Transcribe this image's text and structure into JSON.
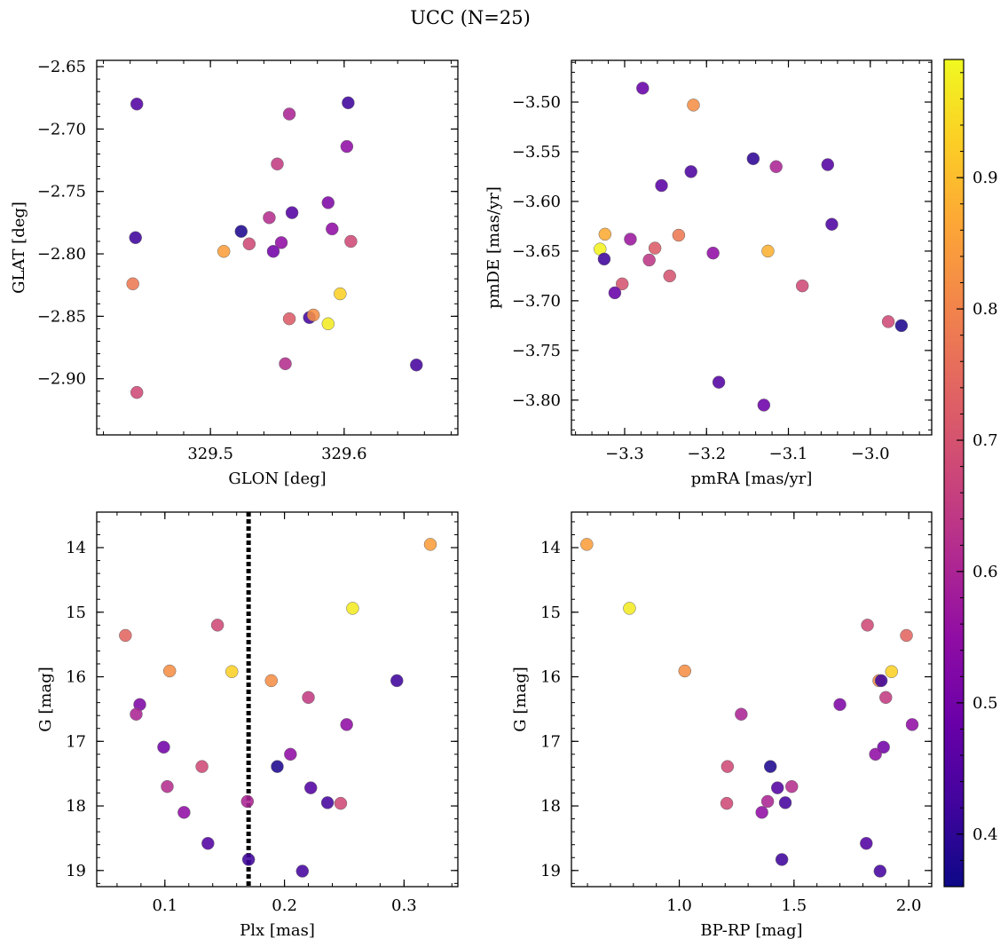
{
  "figure": {
    "title": "UCC (N=25)"
  },
  "colorbar": {
    "min": 0.36,
    "max": 0.99,
    "ticks": [
      "0.4",
      "0.5",
      "0.6",
      "0.7",
      "0.8",
      "0.9"
    ],
    "tick_values": [
      0.4,
      0.5,
      0.6,
      0.7,
      0.8,
      0.9
    ],
    "colormap": "plasma"
  },
  "chart_data": [
    {
      "type": "scatter",
      "id": "glon-glat",
      "xlabel": "GLON [deg]",
      "ylabel": "GLAT [deg]",
      "xlim": [
        329.415,
        329.685
      ],
      "ylim": [
        -2.945,
        -2.645
      ],
      "xticks": [
        329.5,
        329.6
      ],
      "xticklabels": [
        "329.5",
        "329.6"
      ],
      "yticks": [
        -2.65,
        -2.7,
        -2.75,
        -2.8,
        -2.85,
        -2.9
      ],
      "yticklabels": [
        "−2.65",
        "−2.70",
        "−2.75",
        "−2.80",
        "−2.85",
        "−2.90"
      ],
      "y_inverted": false,
      "points": [
        {
          "x": 329.445,
          "y": -2.68,
          "c": 0.45
        },
        {
          "x": 329.559,
          "y": -2.688,
          "c": 0.6
        },
        {
          "x": 329.603,
          "y": -2.679,
          "c": 0.42
        },
        {
          "x": 329.602,
          "y": -2.714,
          "c": 0.55
        },
        {
          "x": 329.55,
          "y": -2.728,
          "c": 0.65
        },
        {
          "x": 329.588,
          "y": -2.759,
          "c": 0.52
        },
        {
          "x": 329.561,
          "y": -2.767,
          "c": 0.45
        },
        {
          "x": 329.544,
          "y": -2.771,
          "c": 0.62
        },
        {
          "x": 329.523,
          "y": -2.782,
          "c": 0.38
        },
        {
          "x": 329.444,
          "y": -2.787,
          "c": 0.42
        },
        {
          "x": 329.591,
          "y": -2.78,
          "c": 0.55
        },
        {
          "x": 329.529,
          "y": -2.792,
          "c": 0.68
        },
        {
          "x": 329.553,
          "y": -2.791,
          "c": 0.55
        },
        {
          "x": 329.605,
          "y": -2.79,
          "c": 0.68
        },
        {
          "x": 329.51,
          "y": -2.798,
          "c": 0.85
        },
        {
          "x": 329.547,
          "y": -2.798,
          "c": 0.5
        },
        {
          "x": 329.442,
          "y": -2.824,
          "c": 0.78
        },
        {
          "x": 329.597,
          "y": -2.832,
          "c": 0.93
        },
        {
          "x": 329.559,
          "y": -2.852,
          "c": 0.72
        },
        {
          "x": 329.574,
          "y": -2.851,
          "c": 0.43
        },
        {
          "x": 329.577,
          "y": -2.849,
          "c": 0.82
        },
        {
          "x": 329.588,
          "y": -2.856,
          "c": 0.97
        },
        {
          "x": 329.556,
          "y": -2.888,
          "c": 0.62
        },
        {
          "x": 329.654,
          "y": -2.889,
          "c": 0.43
        },
        {
          "x": 329.445,
          "y": -2.911,
          "c": 0.68
        }
      ]
    },
    {
      "type": "scatter",
      "id": "pmra-pmde",
      "xlabel": "pmRA [mas/yr]",
      "ylabel": "pmDE [mas/yr]",
      "xlim": [
        -3.365,
        -2.925
      ],
      "ylim": [
        -3.835,
        -3.458
      ],
      "xticks": [
        -3.3,
        -3.2,
        -3.1,
        -3.0
      ],
      "xticklabels": [
        "−3.3",
        "−3.2",
        "−3.1",
        "−3.0"
      ],
      "yticks": [
        -3.5,
        -3.55,
        -3.6,
        -3.65,
        -3.7,
        -3.75,
        -3.8
      ],
      "yticklabels": [
        "−3.50",
        "−3.55",
        "−3.60",
        "−3.65",
        "−3.70",
        "−3.75",
        "−3.80"
      ],
      "y_inverted": false,
      "points": [
        {
          "x": -3.278,
          "y": -3.486,
          "c": 0.48
        },
        {
          "x": -3.216,
          "y": -3.503,
          "c": 0.82
        },
        {
          "x": -3.143,
          "y": -3.557,
          "c": 0.4
        },
        {
          "x": -3.052,
          "y": -3.563,
          "c": 0.45
        },
        {
          "x": -3.115,
          "y": -3.565,
          "c": 0.6
        },
        {
          "x": -3.219,
          "y": -3.57,
          "c": 0.44
        },
        {
          "x": -3.255,
          "y": -3.584,
          "c": 0.46
        },
        {
          "x": -3.047,
          "y": -3.623,
          "c": 0.44
        },
        {
          "x": -3.324,
          "y": -3.633,
          "c": 0.87
        },
        {
          "x": -3.234,
          "y": -3.634,
          "c": 0.78
        },
        {
          "x": -3.293,
          "y": -3.638,
          "c": 0.57
        },
        {
          "x": -3.263,
          "y": -3.647,
          "c": 0.72
        },
        {
          "x": -3.33,
          "y": -3.648,
          "c": 0.98
        },
        {
          "x": -3.125,
          "y": -3.65,
          "c": 0.88
        },
        {
          "x": -3.192,
          "y": -3.652,
          "c": 0.55
        },
        {
          "x": -3.325,
          "y": -3.658,
          "c": 0.42
        },
        {
          "x": -3.27,
          "y": -3.659,
          "c": 0.64
        },
        {
          "x": -3.245,
          "y": -3.675,
          "c": 0.7
        },
        {
          "x": -3.303,
          "y": -3.683,
          "c": 0.7
        },
        {
          "x": -3.083,
          "y": -3.685,
          "c": 0.68
        },
        {
          "x": -3.312,
          "y": -3.692,
          "c": 0.48
        },
        {
          "x": -2.978,
          "y": -3.721,
          "c": 0.68
        },
        {
          "x": -2.962,
          "y": -3.725,
          "c": 0.38
        },
        {
          "x": -3.185,
          "y": -3.782,
          "c": 0.45
        },
        {
          "x": -3.13,
          "y": -3.805,
          "c": 0.49
        }
      ]
    },
    {
      "type": "scatter",
      "id": "plx-g",
      "xlabel": "Plx [mas]",
      "ylabel": "G [mag]",
      "xlim": [
        0.043,
        0.345
      ],
      "ylim": [
        13.45,
        19.25
      ],
      "xticks": [
        0.1,
        0.2,
        0.3
      ],
      "xticklabels": [
        "0.1",
        "0.2",
        "0.3"
      ],
      "yticks": [
        14,
        15,
        16,
        17,
        18,
        19
      ],
      "yticklabels": [
        "14",
        "15",
        "16",
        "17",
        "18",
        "19"
      ],
      "y_inverted": true,
      "vline": 0.17,
      "points": [
        {
          "x": 0.322,
          "y": 13.95,
          "c": 0.85
        },
        {
          "x": 0.257,
          "y": 14.94,
          "c": 0.97
        },
        {
          "x": 0.067,
          "y": 15.36,
          "c": 0.74
        },
        {
          "x": 0.144,
          "y": 15.2,
          "c": 0.68
        },
        {
          "x": 0.104,
          "y": 15.91,
          "c": 0.82
        },
        {
          "x": 0.156,
          "y": 15.92,
          "c": 0.93
        },
        {
          "x": 0.189,
          "y": 16.06,
          "c": 0.82
        },
        {
          "x": 0.294,
          "y": 16.06,
          "c": 0.42
        },
        {
          "x": 0.22,
          "y": 16.32,
          "c": 0.65
        },
        {
          "x": 0.079,
          "y": 16.43,
          "c": 0.52
        },
        {
          "x": 0.076,
          "y": 16.58,
          "c": 0.6
        },
        {
          "x": 0.252,
          "y": 16.74,
          "c": 0.55
        },
        {
          "x": 0.099,
          "y": 17.09,
          "c": 0.5
        },
        {
          "x": 0.205,
          "y": 17.2,
          "c": 0.55
        },
        {
          "x": 0.131,
          "y": 17.39,
          "c": 0.68
        },
        {
          "x": 0.194,
          "y": 17.39,
          "c": 0.38
        },
        {
          "x": 0.102,
          "y": 17.7,
          "c": 0.62
        },
        {
          "x": 0.222,
          "y": 17.72,
          "c": 0.45
        },
        {
          "x": 0.169,
          "y": 17.93,
          "c": 0.6
        },
        {
          "x": 0.236,
          "y": 17.95,
          "c": 0.43
        },
        {
          "x": 0.247,
          "y": 17.96,
          "c": 0.68
        },
        {
          "x": 0.116,
          "y": 18.1,
          "c": 0.55
        },
        {
          "x": 0.136,
          "y": 18.58,
          "c": 0.45
        },
        {
          "x": 0.17,
          "y": 18.83,
          "c": 0.42
        },
        {
          "x": 0.215,
          "y": 19.01,
          "c": 0.43
        }
      ]
    },
    {
      "type": "scatter",
      "id": "bprp-g",
      "xlabel": "BP-RP [mag]",
      "ylabel": "G [mag]",
      "xlim": [
        0.53,
        2.1
      ],
      "ylim": [
        13.45,
        19.25
      ],
      "xticks": [
        1.0,
        1.5,
        2.0
      ],
      "xticklabels": [
        "1.0",
        "1.5",
        "2.0"
      ],
      "yticks": [
        14,
        15,
        16,
        17,
        18,
        19
      ],
      "yticklabels": [
        "14",
        "15",
        "16",
        "17",
        "18",
        "19"
      ],
      "y_inverted": true,
      "points": [
        {
          "x": 0.597,
          "y": 13.95,
          "c": 0.85
        },
        {
          "x": 0.783,
          "y": 14.94,
          "c": 0.97
        },
        {
          "x": 1.99,
          "y": 15.36,
          "c": 0.74
        },
        {
          "x": 1.82,
          "y": 15.2,
          "c": 0.68
        },
        {
          "x": 1.024,
          "y": 15.91,
          "c": 0.82
        },
        {
          "x": 1.925,
          "y": 15.92,
          "c": 0.93
        },
        {
          "x": 1.87,
          "y": 16.06,
          "c": 0.82
        },
        {
          "x": 1.88,
          "y": 16.06,
          "c": 0.42
        },
        {
          "x": 1.9,
          "y": 16.32,
          "c": 0.65
        },
        {
          "x": 1.7,
          "y": 16.43,
          "c": 0.52
        },
        {
          "x": 1.27,
          "y": 16.58,
          "c": 0.6
        },
        {
          "x": 2.015,
          "y": 16.74,
          "c": 0.55
        },
        {
          "x": 1.89,
          "y": 17.09,
          "c": 0.5
        },
        {
          "x": 1.855,
          "y": 17.2,
          "c": 0.55
        },
        {
          "x": 1.21,
          "y": 17.39,
          "c": 0.68
        },
        {
          "x": 1.397,
          "y": 17.39,
          "c": 0.38
        },
        {
          "x": 1.49,
          "y": 17.7,
          "c": 0.62
        },
        {
          "x": 1.428,
          "y": 17.72,
          "c": 0.45
        },
        {
          "x": 1.385,
          "y": 17.93,
          "c": 0.6
        },
        {
          "x": 1.462,
          "y": 17.95,
          "c": 0.43
        },
        {
          "x": 1.207,
          "y": 17.96,
          "c": 0.68
        },
        {
          "x": 1.36,
          "y": 18.1,
          "c": 0.55
        },
        {
          "x": 1.815,
          "y": 18.58,
          "c": 0.45
        },
        {
          "x": 1.447,
          "y": 18.83,
          "c": 0.42
        },
        {
          "x": 1.875,
          "y": 19.01,
          "c": 0.43
        }
      ]
    }
  ]
}
